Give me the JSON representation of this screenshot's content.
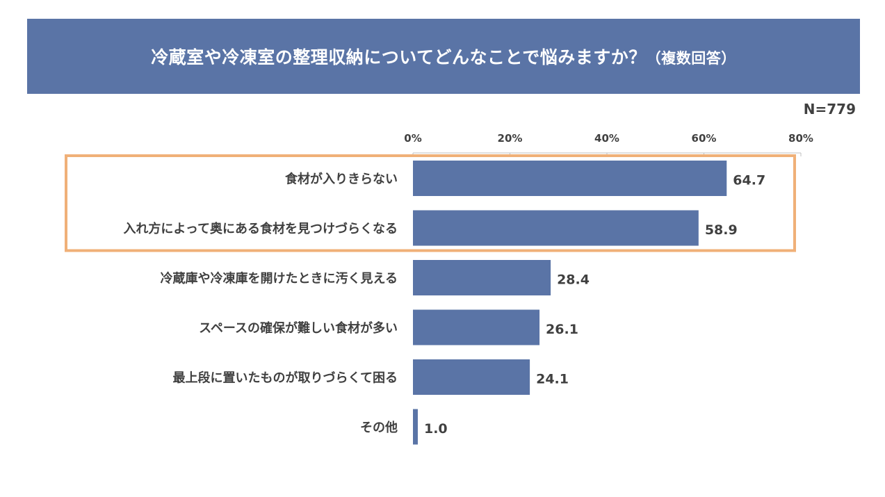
{
  "title": {
    "main": "冷蔵室や冷凍室の整理収納についてどんなことで悩みますか？",
    "sub": "（複数回答）"
  },
  "sample_size": "N=779",
  "colors": {
    "banner": "#5a74a6",
    "bar": "#5a74a6",
    "highlight_border": "#f0b078",
    "text": "#404040"
  },
  "chart_data": {
    "type": "bar",
    "orientation": "horizontal",
    "categories": [
      "食材が入りきらない",
      "入れ方によって奥にある食材を見つけづらくなる",
      "冷蔵庫や冷凍庫を開けたときに汚く見える",
      "スペースの確保が難しい食材が多い",
      "最上段に置いたものが取りづらくて困る",
      "その他"
    ],
    "values": [
      64.7,
      58.9,
      28.4,
      26.1,
      24.1,
      1.0
    ],
    "value_labels": [
      "64.7",
      "58.9",
      "28.4",
      "26.1",
      "24.1",
      "1.0"
    ],
    "xlim": [
      0,
      80
    ],
    "x_ticks": [
      0,
      20,
      40,
      60,
      80
    ],
    "x_tick_labels": [
      "0%",
      "20%",
      "40%",
      "60%",
      "80%"
    ],
    "x_axis_position": "top",
    "grid": false,
    "legend": "none",
    "highlighted_categories": [
      0,
      1
    ]
  }
}
